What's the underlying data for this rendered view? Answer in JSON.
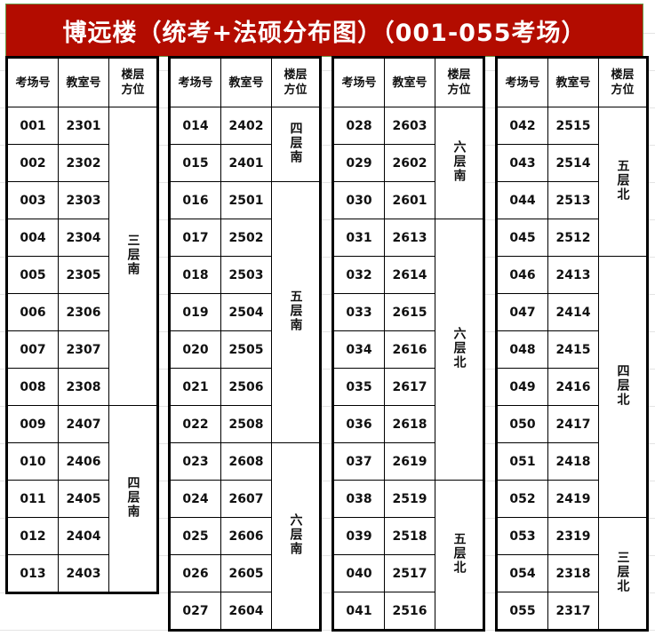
{
  "title": "博远楼（统考+法硕分布图）（001-055考场）",
  "headers": {
    "exam": "考场号",
    "room": "教室号",
    "floor_line1": "楼层",
    "floor_line2": "方位"
  },
  "blocks": [
    {
      "rows": [
        [
          "001",
          "2301"
        ],
        [
          "002",
          "2302"
        ],
        [
          "003",
          "2303"
        ],
        [
          "004",
          "2304"
        ],
        [
          "005",
          "2305"
        ],
        [
          "006",
          "2306"
        ],
        [
          "007",
          "2307"
        ],
        [
          "008",
          "2308"
        ],
        [
          "009",
          "2407"
        ],
        [
          "010",
          "2406"
        ],
        [
          "011",
          "2405"
        ],
        [
          "012",
          "2404"
        ],
        [
          "013",
          "2403"
        ]
      ],
      "floors": [
        {
          "label": "三层南",
          "rows": 8
        },
        {
          "label": "四层南",
          "rows": 5
        }
      ]
    },
    {
      "rows": [
        [
          "014",
          "2402"
        ],
        [
          "015",
          "2401"
        ],
        [
          "016",
          "2501"
        ],
        [
          "017",
          "2502"
        ],
        [
          "018",
          "2503"
        ],
        [
          "019",
          "2504"
        ],
        [
          "020",
          "2505"
        ],
        [
          "021",
          "2506"
        ],
        [
          "022",
          "2508"
        ],
        [
          "023",
          "2608"
        ],
        [
          "024",
          "2607"
        ],
        [
          "025",
          "2606"
        ],
        [
          "026",
          "2605"
        ],
        [
          "027",
          "2604"
        ]
      ],
      "floors": [
        {
          "label": "四层南",
          "rows": 2
        },
        {
          "label": "五层南",
          "rows": 7
        },
        {
          "label": "六层南",
          "rows": 5
        }
      ]
    },
    {
      "rows": [
        [
          "028",
          "2603"
        ],
        [
          "029",
          "2602"
        ],
        [
          "030",
          "2601"
        ],
        [
          "031",
          "2613"
        ],
        [
          "032",
          "2614"
        ],
        [
          "033",
          "2615"
        ],
        [
          "034",
          "2616"
        ],
        [
          "035",
          "2617"
        ],
        [
          "036",
          "2618"
        ],
        [
          "037",
          "2619"
        ],
        [
          "038",
          "2519"
        ],
        [
          "039",
          "2518"
        ],
        [
          "040",
          "2517"
        ],
        [
          "041",
          "2516"
        ]
      ],
      "floors": [
        {
          "label": "六层南",
          "rows": 3
        },
        {
          "label": "六层北",
          "rows": 7
        },
        {
          "label": "五层北",
          "rows": 4
        }
      ]
    },
    {
      "rows": [
        [
          "042",
          "2515"
        ],
        [
          "043",
          "2514"
        ],
        [
          "044",
          "2513"
        ],
        [
          "045",
          "2512"
        ],
        [
          "046",
          "2413"
        ],
        [
          "047",
          "2414"
        ],
        [
          "048",
          "2415"
        ],
        [
          "049",
          "2416"
        ],
        [
          "050",
          "2417"
        ],
        [
          "051",
          "2418"
        ],
        [
          "052",
          "2419"
        ],
        [
          "053",
          "2319"
        ],
        [
          "054",
          "2318"
        ],
        [
          "055",
          "2317"
        ]
      ],
      "floors": [
        {
          "label": "五层北",
          "rows": 4
        },
        {
          "label": "四层北",
          "rows": 7
        },
        {
          "label": "三层北",
          "rows": 3
        }
      ]
    }
  ]
}
